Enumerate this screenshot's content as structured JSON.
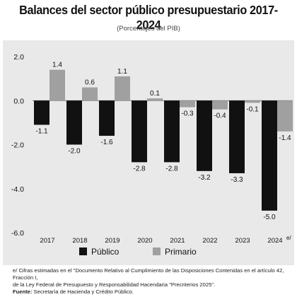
{
  "chart_data": {
    "type": "bar",
    "title": "Balances del sector público presupuestario 2017-2024",
    "subtitle": "(Porcentajes del PIB)",
    "categories": [
      "2017",
      "2018",
      "2019",
      "2020",
      "2021",
      "2022",
      "2023",
      "2024"
    ],
    "category_suffix_last": "e/",
    "series": [
      {
        "name": "Público",
        "color": "#111111",
        "values": [
          -1.1,
          -2.0,
          -1.6,
          -2.8,
          -2.8,
          -3.2,
          -3.3,
          -5.0
        ]
      },
      {
        "name": "Primario",
        "color": "#a0a0a0",
        "values": [
          1.4,
          0.6,
          1.1,
          0.1,
          -0.3,
          -0.4,
          -0.1,
          -1.4
        ]
      }
    ],
    "ylim": [
      -6.0,
      2.0
    ],
    "yticks": [
      "2.0",
      "0.0",
      "-2.0",
      "-4.0",
      "-6.0"
    ],
    "grid": false,
    "legend_position": "bottom"
  },
  "footnote": {
    "line1": "e/ Cifras estimadas en el \"Documento Relativo al Cumplimiento de las Disposiciones Contenidas en el artículo 42, Fracción I,",
    "line2": "de la Ley Federal de Presupuesto y Responsabilidad Hacendaria \"Precriterios 2025\".",
    "source_label": "Fuente:",
    "source_text": "Secretaría de Hacienda y Crédito Público."
  }
}
